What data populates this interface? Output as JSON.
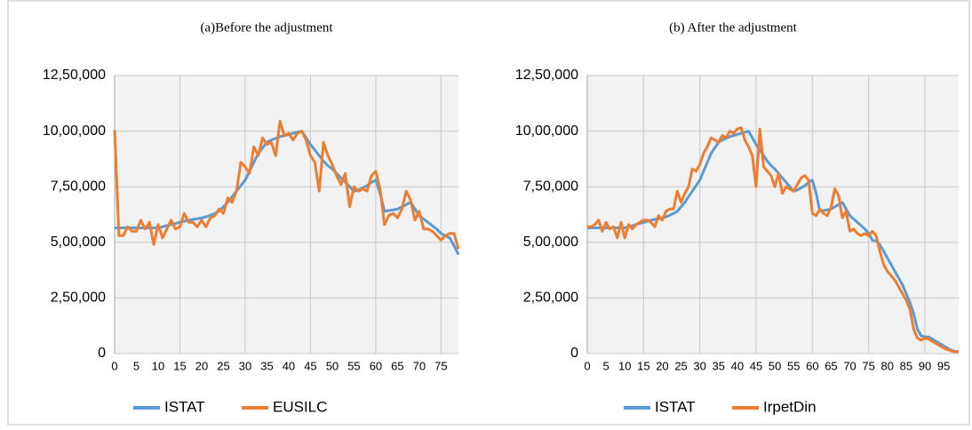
{
  "chart_data": [
    {
      "type": "line",
      "title": "(a)Before the adjustment",
      "x": [
        0,
        1,
        2,
        3,
        4,
        5,
        6,
        7,
        8,
        9,
        10,
        11,
        12,
        13,
        14,
        15,
        16,
        17,
        18,
        19,
        20,
        21,
        22,
        23,
        24,
        25,
        26,
        27,
        28,
        29,
        30,
        31,
        32,
        33,
        34,
        35,
        36,
        37,
        38,
        39,
        40,
        41,
        42,
        43,
        44,
        45,
        46,
        47,
        48,
        49,
        50,
        51,
        52,
        53,
        54,
        55,
        56,
        57,
        58,
        59,
        60,
        61,
        62,
        63,
        64,
        65,
        66,
        67,
        68,
        69,
        70,
        71,
        72,
        73,
        74,
        75,
        76,
        77,
        78,
        79
      ],
      "series": [
        {
          "name": "ISTAT",
          "color": "#5b9bd5",
          "values": [
            565000,
            565000,
            565000,
            565000,
            565000,
            565000,
            565000,
            565000,
            565000,
            565000,
            565000,
            570000,
            575000,
            580000,
            585000,
            590000,
            595000,
            600000,
            603000,
            606000,
            610000,
            615000,
            622000,
            630000,
            640000,
            660000,
            680000,
            705000,
            730000,
            755000,
            780000,
            820000,
            860000,
            900000,
            925000,
            950000,
            960000,
            968000,
            975000,
            980000,
            985000,
            990000,
            995000,
            1000000,
            970000,
            940000,
            915000,
            890000,
            865000,
            845000,
            830000,
            810000,
            790000,
            770000,
            750000,
            730000,
            735000,
            745000,
            755000,
            770000,
            780000,
            720000,
            640000,
            643000,
            646000,
            650000,
            660000,
            670000,
            680000,
            650000,
            620000,
            605000,
            590000,
            575000,
            560000,
            540000,
            530000,
            520000,
            485000,
            445000
          ]
        },
        {
          "name": "EUSILC",
          "color": "#ed7d31",
          "values": [
            1005000,
            530000,
            530000,
            570000,
            550000,
            550000,
            600000,
            560000,
            590000,
            490000,
            580000,
            520000,
            560000,
            600000,
            560000,
            570000,
            630000,
            590000,
            590000,
            570000,
            600000,
            570000,
            610000,
            620000,
            650000,
            630000,
            700000,
            680000,
            730000,
            860000,
            840000,
            810000,
            930000,
            890000,
            970000,
            940000,
            950000,
            890000,
            1045000,
            980000,
            990000,
            960000,
            990000,
            1000000,
            960000,
            890000,
            860000,
            730000,
            950000,
            890000,
            850000,
            800000,
            760000,
            810000,
            660000,
            750000,
            730000,
            740000,
            730000,
            800000,
            820000,
            740000,
            580000,
            620000,
            630000,
            610000,
            650000,
            730000,
            690000,
            600000,
            640000,
            560000,
            560000,
            550000,
            530000,
            510000,
            530000,
            540000,
            540000,
            470000
          ]
        }
      ],
      "xlim": [
        0,
        79
      ],
      "xticks": [
        0,
        5,
        10,
        15,
        20,
        25,
        30,
        35,
        40,
        45,
        50,
        55,
        60,
        65,
        70,
        75
      ],
      "ylim": [
        0,
        1250000
      ],
      "yticks": [
        0,
        {
          "value": 250000,
          "label": "2,50,000"
        },
        {
          "value": 500000,
          "label": "5,00,000"
        },
        {
          "value": 750000,
          "label": "7,50,000"
        },
        {
          "value": 1000000,
          "label": "10,00,000"
        },
        {
          "value": 1250000,
          "label": "12,50,000"
        }
      ],
      "grid": true
    },
    {
      "type": "line",
      "title": "(b) After the adjustment",
      "x": [
        0,
        1,
        2,
        3,
        4,
        5,
        6,
        7,
        8,
        9,
        10,
        11,
        12,
        13,
        14,
        15,
        16,
        17,
        18,
        19,
        20,
        21,
        22,
        23,
        24,
        25,
        26,
        27,
        28,
        29,
        30,
        31,
        32,
        33,
        34,
        35,
        36,
        37,
        38,
        39,
        40,
        41,
        42,
        43,
        44,
        45,
        46,
        47,
        48,
        49,
        50,
        51,
        52,
        53,
        54,
        55,
        56,
        57,
        58,
        59,
        60,
        61,
        62,
        63,
        64,
        65,
        66,
        67,
        68,
        69,
        70,
        71,
        72,
        73,
        74,
        75,
        76,
        77,
        78,
        79,
        80,
        81,
        82,
        83,
        84,
        85,
        86,
        87,
        88,
        89,
        90,
        91,
        92,
        93,
        94,
        95,
        96,
        97,
        98,
        99
      ],
      "series": [
        {
          "name": "ISTAT",
          "color": "#5b9bd5",
          "values": [
            565000,
            565000,
            565000,
            565000,
            565000,
            565000,
            565000,
            565000,
            565000,
            565000,
            565000,
            570000,
            575000,
            580000,
            585000,
            590000,
            595000,
            600000,
            603000,
            606000,
            610000,
            615000,
            622000,
            630000,
            640000,
            660000,
            680000,
            705000,
            730000,
            755000,
            780000,
            820000,
            860000,
            900000,
            925000,
            950000,
            960000,
            968000,
            975000,
            980000,
            985000,
            990000,
            995000,
            1000000,
            970000,
            940000,
            915000,
            890000,
            865000,
            845000,
            830000,
            810000,
            790000,
            770000,
            750000,
            730000,
            735000,
            745000,
            755000,
            770000,
            780000,
            720000,
            640000,
            643000,
            646000,
            650000,
            660000,
            670000,
            680000,
            650000,
            620000,
            605000,
            590000,
            575000,
            560000,
            540000,
            510000,
            505000,
            490000,
            460000,
            430000,
            400000,
            370000,
            340000,
            310000,
            270000,
            230000,
            180000,
            110000,
            80000,
            75000,
            75000,
            65000,
            55000,
            45000,
            35000,
            25000,
            15000,
            10000,
            8000
          ]
        },
        {
          "name": "IrpetDin",
          "color": "#ed7d31",
          "values": [
            570000,
            570000,
            580000,
            600000,
            550000,
            590000,
            560000,
            570000,
            520000,
            590000,
            520000,
            580000,
            560000,
            580000,
            590000,
            600000,
            600000,
            590000,
            570000,
            620000,
            600000,
            640000,
            650000,
            650000,
            730000,
            680000,
            720000,
            750000,
            830000,
            820000,
            850000,
            900000,
            930000,
            970000,
            960000,
            950000,
            980000,
            970000,
            1000000,
            990000,
            1010000,
            1015000,
            960000,
            930000,
            890000,
            750000,
            1010000,
            840000,
            820000,
            800000,
            750000,
            810000,
            720000,
            750000,
            740000,
            730000,
            760000,
            790000,
            800000,
            780000,
            630000,
            620000,
            650000,
            630000,
            620000,
            660000,
            740000,
            710000,
            610000,
            640000,
            550000,
            560000,
            540000,
            530000,
            540000,
            530000,
            550000,
            530000,
            460000,
            400000,
            370000,
            350000,
            330000,
            300000,
            270000,
            240000,
            200000,
            110000,
            70000,
            60000,
            70000,
            65000,
            55000,
            45000,
            35000,
            25000,
            18000,
            12000,
            8000,
            10000
          ]
        }
      ],
      "xlim": [
        0,
        99
      ],
      "xticks": [
        0,
        5,
        10,
        15,
        20,
        25,
        30,
        35,
        40,
        45,
        50,
        55,
        60,
        65,
        70,
        75,
        80,
        85,
        90,
        95
      ],
      "ylim": [
        0,
        1250000
      ],
      "yticks": [
        0,
        {
          "value": 250000,
          "label": "2,50,000"
        },
        {
          "value": 500000,
          "label": "5,00,000"
        },
        {
          "value": 750000,
          "label": "7,50,000"
        },
        {
          "value": 1000000,
          "label": "10,00,000"
        },
        {
          "value": 1250000,
          "label": "12,50,000"
        }
      ],
      "grid": true
    }
  ]
}
